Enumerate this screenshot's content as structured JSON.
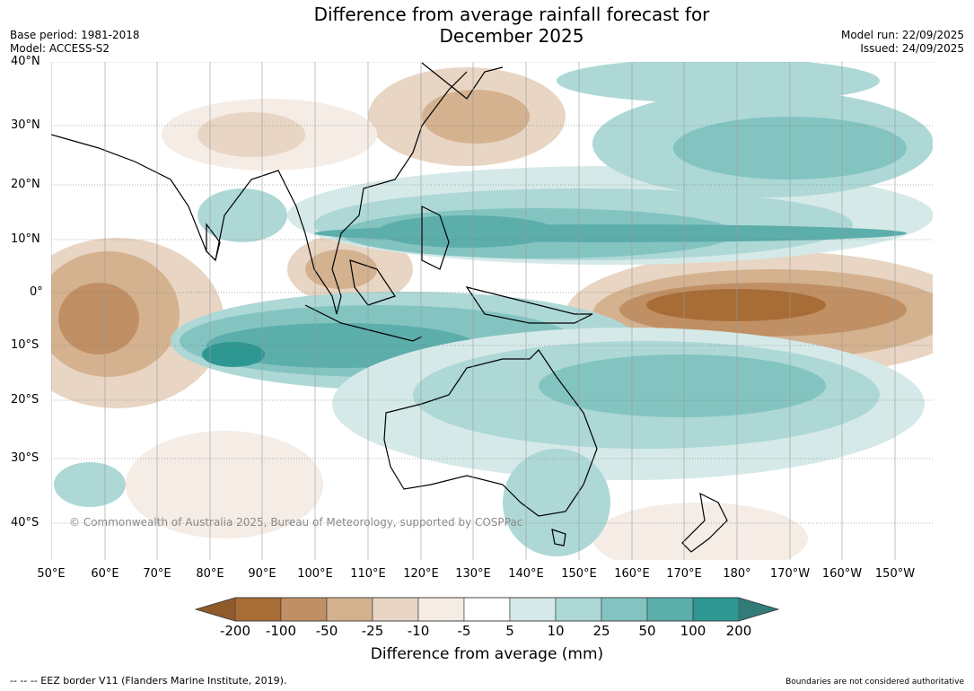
{
  "title_line1": "Difference from average rainfall forecast for",
  "title_line2": "December 2025",
  "base_period": "Base period: 1981-2018",
  "model": "Model: ACCESS-S2",
  "model_run": "Model run: 22/09/2025",
  "issued": "Issued: 24/09/2025",
  "lat_labels": [
    "40°N",
    "30°N",
    "20°N",
    "10°N",
    "0°",
    "10°S",
    "20°S",
    "30°S",
    "40°S"
  ],
  "lon_labels": [
    "50°E",
    "60°E",
    "70°E",
    "80°E",
    "90°E",
    "100°E",
    "110°E",
    "120°E",
    "130°E",
    "140°E",
    "150°E",
    "160°E",
    "170°E",
    "180°",
    "170°W",
    "160°W",
    "150°W"
  ],
  "copyright": "© Commonwealth of Australia 2025, Bureau of Meteorology, supported by COSPPac",
  "colorbar": {
    "ticks": [
      "-200",
      "-100",
      "-50",
      "-25",
      "-10",
      "-5",
      "5",
      "10",
      "25",
      "50",
      "100",
      "200"
    ],
    "colors": [
      "#a86d36",
      "#c09064",
      "#d4b290",
      "#e8d5c3",
      "#f5ece5",
      "#ffffff",
      "#d5e9e8",
      "#add8d6",
      "#83c4c1",
      "#5caeab",
      "#2e9792"
    ],
    "low_color": "#8f5a2c",
    "high_color": "#327b78",
    "label": "Difference from average (mm)"
  },
  "footer_left": "--  --  -- EEZ border V11 (Flanders Marine Institute, 2019).",
  "footer_right": "Boundaries are not considered authoritative"
}
